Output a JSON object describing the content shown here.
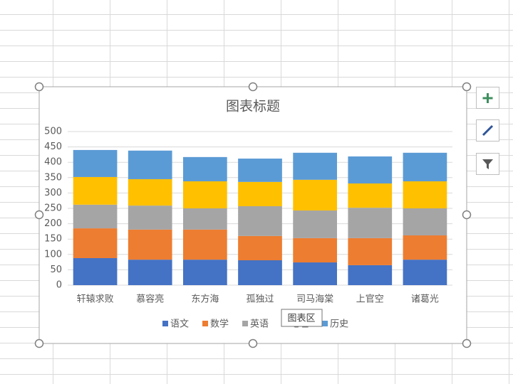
{
  "chart_data": {
    "type": "stacked_bar",
    "title": "图表标题",
    "categories": [
      "轩辕求败",
      "慕容亮",
      "东方海",
      "孤独过",
      "司马海棠",
      "上官空",
      "诸葛光"
    ],
    "series": [
      {
        "name": "语文",
        "color": "#4472c4",
        "values": [
          88,
          83,
          83,
          81,
          74,
          65,
          83
        ]
      },
      {
        "name": "数学",
        "color": "#ed7d31",
        "values": [
          97,
          98,
          98,
          79,
          79,
          88,
          79
        ]
      },
      {
        "name": "英语",
        "color": "#a5a5a5",
        "values": [
          77,
          78,
          69,
          97,
          90,
          99,
          88
        ]
      },
      {
        "name": "地理",
        "color": "#ffc000",
        "values": [
          90,
          86,
          88,
          79,
          100,
          79,
          88
        ]
      },
      {
        "name": "历史",
        "color": "#5b9bd5",
        "values": [
          88,
          93,
          79,
          76,
          88,
          88,
          93
        ]
      }
    ],
    "ylim": [
      0,
      500
    ],
    "yticks": [
      0,
      50,
      100,
      150,
      200,
      250,
      300,
      350,
      400,
      450,
      500
    ],
    "grid": true,
    "tooltip": "图表区"
  }
}
